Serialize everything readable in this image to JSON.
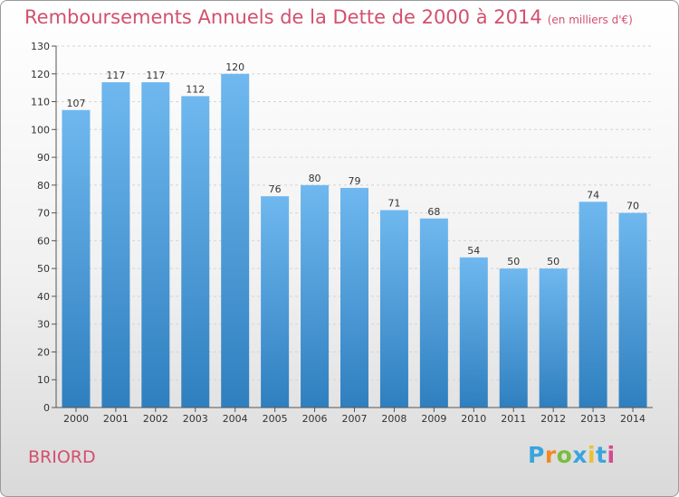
{
  "title": "Remboursements Annuels de la Dette de 2000 à 2014",
  "subtitle": "(en milliers d'€)",
  "place": "BRIORD",
  "brand": {
    "letters": [
      "P",
      "r",
      "o",
      "x",
      "i",
      "t",
      "i"
    ],
    "colors": [
      "#3aa5dc",
      "#f08a24",
      "#7bbd3f",
      "#3aa5dc",
      "#e8c234",
      "#3aa5dc",
      "#d24b8c"
    ]
  },
  "colors": {
    "title": "#d2506e",
    "bar_top": "#6fb8ef",
    "bar_bottom": "#2f7fbf"
  },
  "chart_data": {
    "type": "bar",
    "title": "Remboursements Annuels de la Dette de 2000 à 2014",
    "ylabel": "(en milliers d'€)",
    "categories": [
      "2000",
      "2001",
      "2002",
      "2003",
      "2004",
      "2005",
      "2006",
      "2007",
      "2008",
      "2009",
      "2010",
      "2011",
      "2012",
      "2013",
      "2014"
    ],
    "values": [
      107,
      117,
      117,
      112,
      120,
      76,
      80,
      79,
      71,
      68,
      54,
      50,
      50,
      74,
      70
    ],
    "ylim": [
      0,
      130
    ],
    "yticks": [
      0,
      10,
      20,
      30,
      40,
      50,
      60,
      70,
      80,
      90,
      100,
      110,
      120,
      130
    ],
    "grid": true
  }
}
